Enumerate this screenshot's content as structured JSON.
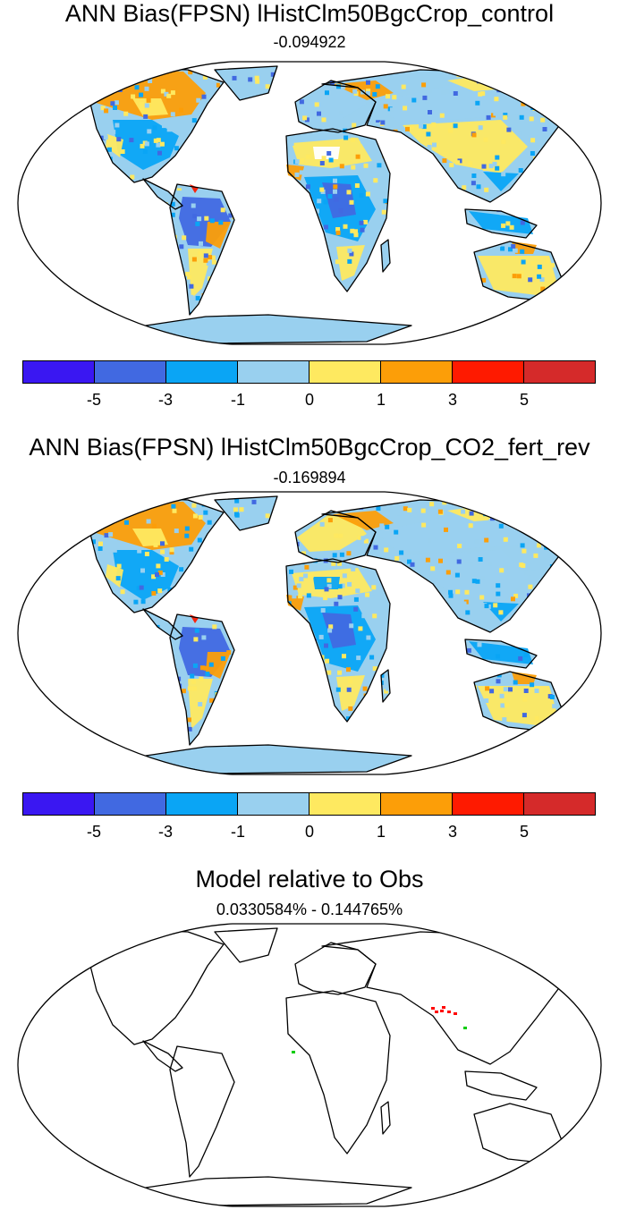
{
  "panels": [
    {
      "title": "ANN Bias(FPSN) lHistClm50BgcCrop_control",
      "subtitle": "-0.094922"
    },
    {
      "title": "ANN Bias(FPSN) lHistClm50BgcCrop_CO2_fert_rev",
      "subtitle": "-0.169894"
    },
    {
      "title": "Model relative to Obs",
      "subtitle": "0.0330584% - 0.144765%"
    }
  ],
  "colorbar": {
    "colors": [
      "#3a17f2",
      "#4169e1",
      "#0aa5f5",
      "#99d0ef",
      "#fee960",
      "#fc9e08",
      "#fe1a00",
      "#d52a2a"
    ],
    "labels": [
      "-5",
      "-3",
      "-1",
      "0",
      "1",
      "3",
      "5"
    ]
  },
  "colors": {
    "coastline": "#000000",
    "land_background": "#99d0ef",
    "marker_red": "#ff0000",
    "marker_green": "#00cc00"
  }
}
